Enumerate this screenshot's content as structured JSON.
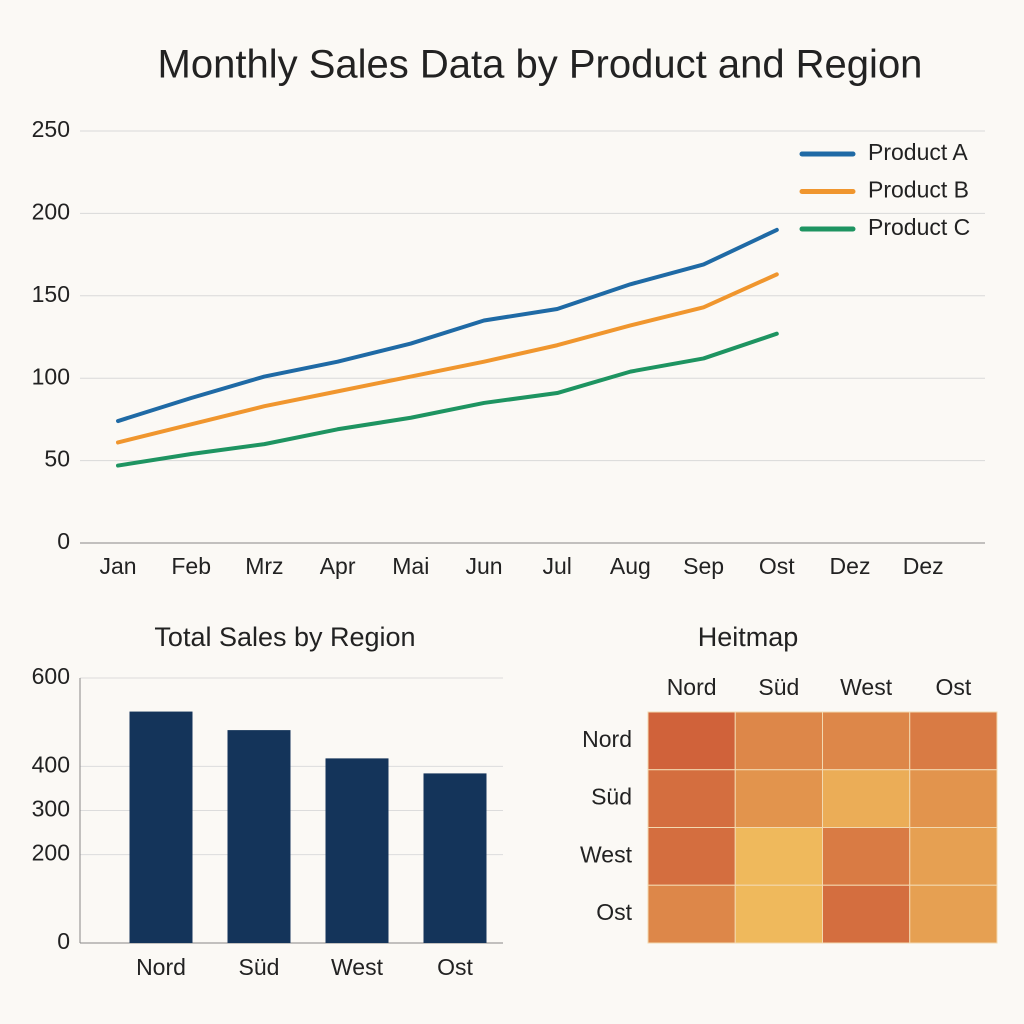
{
  "title": "Monthly Sales Data by Product and Region",
  "chart_data": [
    {
      "type": "line",
      "categories": [
        "Jan",
        "Feb",
        "Mrz",
        "Apr",
        "Mai",
        "Jun",
        "Jul",
        "Aug",
        "Sep",
        "Ost",
        "Dez",
        "Dez"
      ],
      "series": [
        {
          "name": "Product A",
          "color": "#1f6aa5",
          "values": [
            74,
            88,
            101,
            110,
            121,
            135,
            142,
            157,
            169,
            190,
            null,
            null
          ]
        },
        {
          "name": "Product B",
          "color": "#f0962e",
          "values": [
            61,
            72,
            83,
            92,
            101,
            110,
            120,
            132,
            143,
            163,
            null,
            null
          ]
        },
        {
          "name": "Product C",
          "color": "#1e9461",
          "values": [
            47,
            54,
            60,
            69,
            76,
            85,
            91,
            104,
            112,
            127,
            null,
            null
          ]
        }
      ],
      "ylim": [
        0,
        250
      ],
      "yticks": [
        0,
        50,
        100,
        150,
        200,
        250
      ],
      "grid": true,
      "legend": "upper right"
    },
    {
      "type": "bar",
      "title": "Total Sales by Region",
      "categories": [
        "Nord",
        "Süd",
        "West",
        "Ost"
      ],
      "values": [
        524,
        482,
        418,
        384
      ],
      "color": "#14345a",
      "ylim": [
        0,
        600
      ],
      "yticks": [
        0,
        200,
        300,
        400,
        600
      ],
      "grid": true
    },
    {
      "type": "heatmap",
      "title": "Heitmap",
      "x_categories": [
        "Nord",
        "Süd",
        "West",
        "Ost"
      ],
      "y_categories": [
        "Nord",
        "Süd",
        "West",
        "Ost"
      ],
      "values": [
        [
          9,
          6,
          6,
          7
        ],
        [
          8,
          5,
          3,
          5
        ],
        [
          8,
          2,
          7,
          4
        ],
        [
          6,
          2,
          8,
          4
        ]
      ],
      "colors": [
        "#efb95c",
        "#d0623a"
      ]
    }
  ]
}
